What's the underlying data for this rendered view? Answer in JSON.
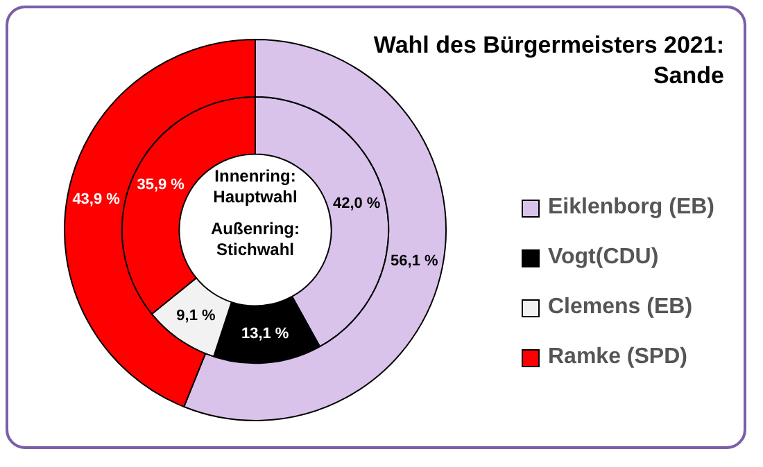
{
  "chart_data": {
    "type": "donut",
    "title": "Wahl des Bürgermeisters 2021:\nSande",
    "categories": [
      "Eiklenborg (EB)",
      "Vogt(CDU)",
      "Clemens (EB)",
      "Ramke (SPD)"
    ],
    "colors": [
      "#d9c3ea",
      "#000000",
      "#f2f2f2",
      "#ff0000"
    ],
    "series": [
      {
        "values": [
          56.1,
          null,
          null,
          43.9
        ],
        "value_labels": [
          "56,1 %",
          null,
          null,
          "43,9 %"
        ]
      },
      {
        "values": [
          42.0,
          13.1,
          9.1,
          35.9
        ],
        "value_labels": [
          "42,0 %",
          "13,1 %",
          "9,1 %",
          "35,9 %"
        ]
      }
    ],
    "annotations": [
      "Innenring:\nHauptwahl",
      "Außenring:\nStichwahl"
    ],
    "legend": "right"
  }
}
